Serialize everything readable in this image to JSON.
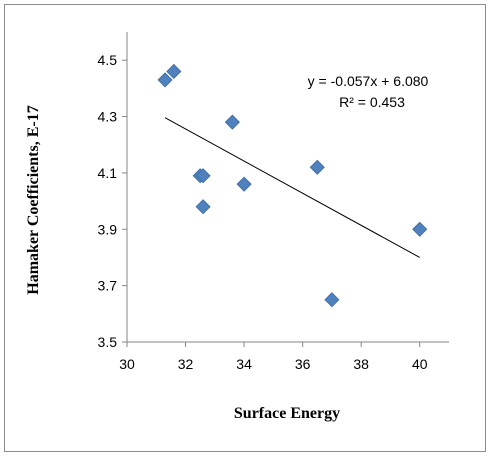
{
  "chart_data": {
    "type": "scatter",
    "xlabel": "Surface Energy",
    "ylabel": "Hamaker Coefficients, E-17",
    "xlim": [
      30,
      41
    ],
    "ylim": [
      3.5,
      4.6
    ],
    "x_ticks": [
      "30",
      "32",
      "34",
      "36",
      "38",
      "40"
    ],
    "y_ticks": [
      "3.5",
      "3.7",
      "3.9",
      "4.1",
      "4.3",
      "4.5"
    ],
    "grid": false,
    "marker_color": "#4F81BD",
    "marker_shape": "diamond",
    "points": [
      {
        "x": 31.3,
        "y": 4.43
      },
      {
        "x": 31.6,
        "y": 4.46
      },
      {
        "x": 32.5,
        "y": 4.09
      },
      {
        "x": 32.6,
        "y": 4.09
      },
      {
        "x": 32.6,
        "y": 3.98
      },
      {
        "x": 33.6,
        "y": 4.28
      },
      {
        "x": 34.0,
        "y": 4.06
      },
      {
        "x": 36.5,
        "y": 4.12
      },
      {
        "x": 37.0,
        "y": 3.65
      },
      {
        "x": 40.0,
        "y": 3.9
      }
    ],
    "trendline": {
      "type": "linear",
      "slope": -0.057,
      "intercept": 6.08,
      "x_range": [
        31.3,
        40.0
      ],
      "color": "#000000",
      "equation_label": "y = -0.057x + 6.080",
      "r2_label": "R² = 0.453"
    }
  }
}
